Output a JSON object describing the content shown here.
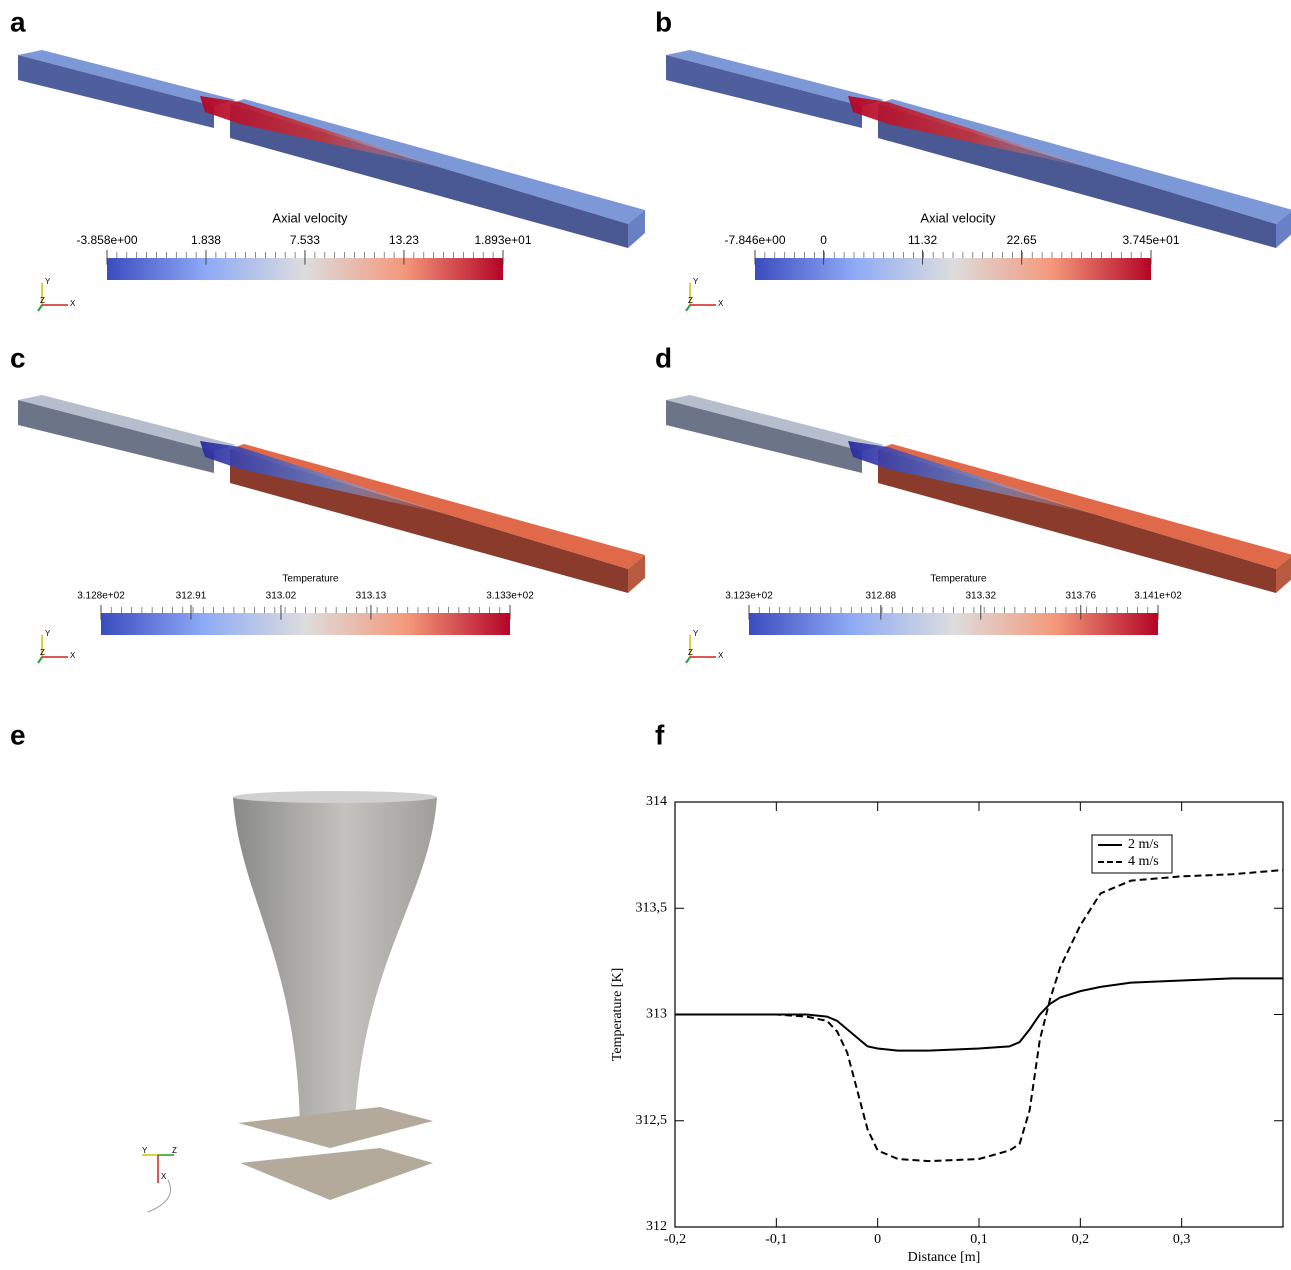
{
  "panels": [
    {
      "label": "a",
      "colorbar": {
        "title": "Axial velocity",
        "range": [
          -3.858,
          18.93
        ],
        "ticks": [
          {
            "value": -3.858,
            "label": "-3.858e+00"
          },
          1.838,
          7.533,
          13.23,
          {
            "value": 18.93,
            "label": "1.893e+01"
          }
        ]
      },
      "triad": [
        "Y",
        "Z",
        "X"
      ]
    },
    {
      "label": "b",
      "colorbar": {
        "title": "Axial velocity",
        "range": [
          -7.846,
          37.45
        ],
        "ticks": [
          {
            "value": -7.846,
            "label": "-7.846e+00"
          },
          0,
          11.32,
          22.65,
          {
            "value": 37.45,
            "label": "3.745e+01"
          }
        ]
      },
      "triad": [
        "Y",
        "Z",
        "X"
      ]
    },
    {
      "label": "c",
      "colorbar": {
        "title": "Temperature",
        "range": [
          312.8,
          313.3
        ],
        "ticks": [
          {
            "value": 312.8,
            "label": "3.128e+02"
          },
          312.91,
          313.02,
          313.13,
          {
            "value": 313.3,
            "label": "3.133e+02"
          }
        ]
      },
      "triad": [
        "Y",
        "Z",
        "X"
      ]
    },
    {
      "label": "d",
      "colorbar": {
        "title": "Temperature",
        "range": [
          312.3,
          314.1
        ],
        "ticks": [
          {
            "value": 312.3,
            "label": "3.123e+02"
          },
          312.88,
          313.32,
          313.76,
          {
            "value": 314.1,
            "label": "3.141e+02"
          }
        ]
      },
      "triad": [
        "Y",
        "Z",
        "X"
      ]
    },
    {
      "label": "e",
      "triad": [
        "Y",
        "Z",
        "X"
      ]
    }
  ],
  "chart_data": {
    "type": "line",
    "label": "f",
    "xlabel": "Distance [m]",
    "ylabel": "Temperature [K]",
    "x": [
      -0.2,
      -0.1,
      -0.07,
      -0.05,
      -0.04,
      -0.03,
      -0.02,
      -0.01,
      0,
      0.02,
      0.05,
      0.1,
      0.13,
      0.14,
      0.15,
      0.16,
      0.17,
      0.18,
      0.2,
      0.22,
      0.25,
      0.3,
      0.35,
      0.4
    ],
    "series": [
      {
        "name": "2 m/s",
        "color": "#000000",
        "dash": "solid",
        "values": [
          313,
          313,
          313,
          312.99,
          312.97,
          312.93,
          312.89,
          312.85,
          312.84,
          312.83,
          312.83,
          312.84,
          312.85,
          312.87,
          312.93,
          313.0,
          313.05,
          313.08,
          313.11,
          313.13,
          313.15,
          313.16,
          313.17,
          313.17
        ]
      },
      {
        "name": "4 m/s",
        "color": "#000000",
        "dash": "dashed",
        "values": [
          313,
          313,
          312.99,
          312.97,
          312.92,
          312.82,
          312.64,
          312.46,
          312.36,
          312.32,
          312.31,
          312.32,
          312.36,
          312.39,
          312.55,
          312.88,
          313.07,
          313.22,
          313.42,
          313.57,
          313.63,
          313.65,
          313.66,
          313.68
        ]
      }
    ],
    "xlim": [
      -0.2,
      0.4
    ],
    "ylim": [
      312,
      314
    ],
    "xticks": [
      {
        "value": -0.2,
        "label": "-0,2"
      },
      {
        "value": -0.1,
        "label": "-0,1"
      },
      0,
      {
        "value": 0.1,
        "label": "0,1"
      },
      {
        "value": 0.2,
        "label": "0,2"
      },
      {
        "value": 0.3,
        "label": "0,3"
      }
    ],
    "yticks": [
      312,
      {
        "value": 312.5,
        "label": "312,5"
      },
      313,
      {
        "value": 313.5,
        "label": "313,5"
      },
      314
    ],
    "legend": "upper right"
  }
}
